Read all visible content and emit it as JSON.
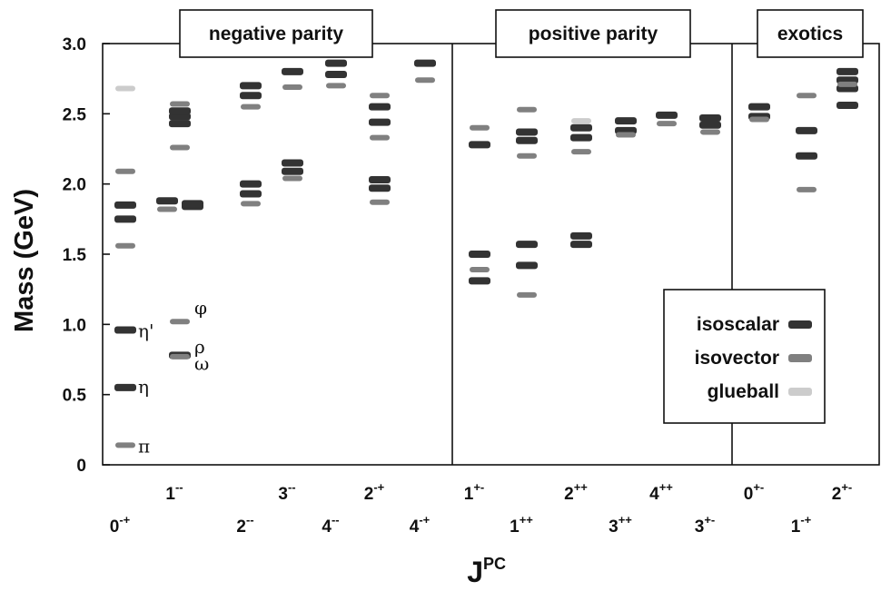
{
  "chart_data": {
    "type": "scatter",
    "ylabel": "Mass (GeV)",
    "xlabel_main": "J",
    "xlabel_sup": "PC",
    "ylim": [
      0,
      3.0
    ],
    "yticks": [
      "0",
      "0.5",
      "1.0",
      "1.5",
      "2.0",
      "2.5",
      "3.0"
    ],
    "sections": [
      {
        "title": "negative parity"
      },
      {
        "title": "positive parity"
      },
      {
        "title": "exotics"
      }
    ],
    "legend": [
      {
        "label": "isoscalar",
        "color": "#333333"
      },
      {
        "label": "isovector",
        "color": "#808080"
      },
      {
        "label": "glueball",
        "color": "#cccccc"
      }
    ],
    "columns": [
      {
        "j": "0",
        "pc": "-+"
      },
      {
        "j": "1",
        "pc": "--"
      },
      {
        "j": "2",
        "pc": "--"
      },
      {
        "j": "3",
        "pc": "--"
      },
      {
        "j": "4",
        "pc": "--"
      },
      {
        "j": "2",
        "pc": "-+"
      },
      {
        "j": "4",
        "pc": "-+"
      },
      {
        "j": "1",
        "pc": "+-"
      },
      {
        "j": "1",
        "pc": "++"
      },
      {
        "j": "2",
        "pc": "++"
      },
      {
        "j": "3",
        "pc": "++"
      },
      {
        "j": "4",
        "pc": "++"
      },
      {
        "j": "3",
        "pc": "+-"
      },
      {
        "j": "0",
        "pc": "+-"
      },
      {
        "j": "1",
        "pc": "-+"
      },
      {
        "j": "2",
        "pc": "+-"
      }
    ],
    "states": [
      {
        "col": 0,
        "mass": 0.14,
        "type": "isovector",
        "label": "π"
      },
      {
        "col": 0,
        "mass": 0.55,
        "type": "isoscalar",
        "label": "η"
      },
      {
        "col": 0,
        "mass": 0.96,
        "type": "isoscalar",
        "label": "η'"
      },
      {
        "col": 0,
        "mass": 1.75,
        "type": "isoscalar"
      },
      {
        "col": 0,
        "mass": 1.85,
        "type": "isoscalar"
      },
      {
        "col": 0,
        "mass": 1.56,
        "type": "isovector"
      },
      {
        "col": 0,
        "mass": 2.09,
        "type": "isovector"
      },
      {
        "col": 0,
        "mass": 2.68,
        "type": "glueball"
      },
      {
        "col": 1,
        "mass": 0.78,
        "type": "isoscalar",
        "label": "ω"
      },
      {
        "col": 1,
        "mass": 0.77,
        "type": "isovector",
        "label": "ρ"
      },
      {
        "col": 1,
        "mass": 1.02,
        "type": "isovector",
        "label": "φ"
      },
      {
        "col": 1,
        "mass": 1.84,
        "type": "isoscalar"
      },
      {
        "col": 1,
        "mass": 1.88,
        "type": "isoscalar"
      },
      {
        "col": 1,
        "mass": 1.86,
        "type": "isoscalar"
      },
      {
        "col": 1,
        "mass": 1.82,
        "type": "isovector"
      },
      {
        "col": 1,
        "mass": 2.26,
        "type": "isovector"
      },
      {
        "col": 1,
        "mass": 2.43,
        "type": "isoscalar"
      },
      {
        "col": 1,
        "mass": 2.48,
        "type": "isoscalar"
      },
      {
        "col": 1,
        "mass": 2.52,
        "type": "isoscalar"
      },
      {
        "col": 1,
        "mass": 2.57,
        "type": "isovector"
      },
      {
        "col": 2,
        "mass": 1.93,
        "type": "isoscalar"
      },
      {
        "col": 2,
        "mass": 2.0,
        "type": "isoscalar"
      },
      {
        "col": 2,
        "mass": 1.86,
        "type": "isovector"
      },
      {
        "col": 2,
        "mass": 2.63,
        "type": "isoscalar"
      },
      {
        "col": 2,
        "mass": 2.7,
        "type": "isoscalar"
      },
      {
        "col": 2,
        "mass": 2.55,
        "type": "isovector"
      },
      {
        "col": 3,
        "mass": 2.09,
        "type": "isoscalar"
      },
      {
        "col": 3,
        "mass": 2.15,
        "type": "isoscalar"
      },
      {
        "col": 3,
        "mass": 2.04,
        "type": "isovector"
      },
      {
        "col": 3,
        "mass": 2.8,
        "type": "isoscalar"
      },
      {
        "col": 3,
        "mass": 2.69,
        "type": "isovector"
      },
      {
        "col": 4,
        "mass": 2.78,
        "type": "isoscalar"
      },
      {
        "col": 4,
        "mass": 2.86,
        "type": "isoscalar"
      },
      {
        "col": 4,
        "mass": 2.7,
        "type": "isovector"
      },
      {
        "col": 5,
        "mass": 1.97,
        "type": "isoscalar"
      },
      {
        "col": 5,
        "mass": 2.03,
        "type": "isoscalar"
      },
      {
        "col": 5,
        "mass": 1.87,
        "type": "isovector"
      },
      {
        "col": 5,
        "mass": 2.44,
        "type": "isoscalar"
      },
      {
        "col": 5,
        "mass": 2.55,
        "type": "isoscalar"
      },
      {
        "col": 5,
        "mass": 2.33,
        "type": "isovector"
      },
      {
        "col": 5,
        "mass": 2.63,
        "type": "isovector"
      },
      {
        "col": 6,
        "mass": 2.86,
        "type": "isoscalar"
      },
      {
        "col": 6,
        "mass": 2.74,
        "type": "isovector"
      },
      {
        "col": 7,
        "mass": 1.31,
        "type": "isoscalar"
      },
      {
        "col": 7,
        "mass": 1.5,
        "type": "isoscalar"
      },
      {
        "col": 7,
        "mass": 1.39,
        "type": "isovector"
      },
      {
        "col": 7,
        "mass": 2.28,
        "type": "isoscalar"
      },
      {
        "col": 7,
        "mass": 2.4,
        "type": "isovector"
      },
      {
        "col": 8,
        "mass": 1.42,
        "type": "isoscalar"
      },
      {
        "col": 8,
        "mass": 1.57,
        "type": "isoscalar"
      },
      {
        "col": 8,
        "mass": 1.21,
        "type": "isovector"
      },
      {
        "col": 8,
        "mass": 2.31,
        "type": "isoscalar"
      },
      {
        "col": 8,
        "mass": 2.37,
        "type": "isoscalar"
      },
      {
        "col": 8,
        "mass": 2.2,
        "type": "isovector"
      },
      {
        "col": 8,
        "mass": 2.53,
        "type": "isovector"
      },
      {
        "col": 9,
        "mass": 1.57,
        "type": "isoscalar"
      },
      {
        "col": 9,
        "mass": 1.63,
        "type": "isoscalar"
      },
      {
        "col": 9,
        "mass": 2.33,
        "type": "isoscalar"
      },
      {
        "col": 9,
        "mass": 2.4,
        "type": "isoscalar"
      },
      {
        "col": 9,
        "mass": 2.23,
        "type": "isovector"
      },
      {
        "col": 9,
        "mass": 2.45,
        "type": "glueball"
      },
      {
        "col": 10,
        "mass": 2.38,
        "type": "isoscalar"
      },
      {
        "col": 10,
        "mass": 2.45,
        "type": "isoscalar"
      },
      {
        "col": 10,
        "mass": 2.35,
        "type": "isovector"
      },
      {
        "col": 11,
        "mass": 2.49,
        "type": "isoscalar"
      },
      {
        "col": 11,
        "mass": 2.43,
        "type": "isovector"
      },
      {
        "col": 12,
        "mass": 2.42,
        "type": "isoscalar"
      },
      {
        "col": 12,
        "mass": 2.47,
        "type": "isoscalar"
      },
      {
        "col": 12,
        "mass": 2.37,
        "type": "isovector"
      },
      {
        "col": 13,
        "mass": 2.55,
        "type": "isoscalar"
      },
      {
        "col": 13,
        "mass": 2.48,
        "type": "isoscalar"
      },
      {
        "col": 13,
        "mass": 2.46,
        "type": "isovector"
      },
      {
        "col": 14,
        "mass": 2.2,
        "type": "isoscalar"
      },
      {
        "col": 14,
        "mass": 2.38,
        "type": "isoscalar"
      },
      {
        "col": 14,
        "mass": 1.96,
        "type": "isovector"
      },
      {
        "col": 14,
        "mass": 2.63,
        "type": "isovector"
      },
      {
        "col": 15,
        "mass": 2.56,
        "type": "isoscalar"
      },
      {
        "col": 15,
        "mass": 2.68,
        "type": "isoscalar"
      },
      {
        "col": 15,
        "mass": 2.74,
        "type": "isoscalar"
      },
      {
        "col": 15,
        "mass": 2.8,
        "type": "isoscalar"
      },
      {
        "col": 15,
        "mass": 2.71,
        "type": "isovector"
      }
    ]
  }
}
